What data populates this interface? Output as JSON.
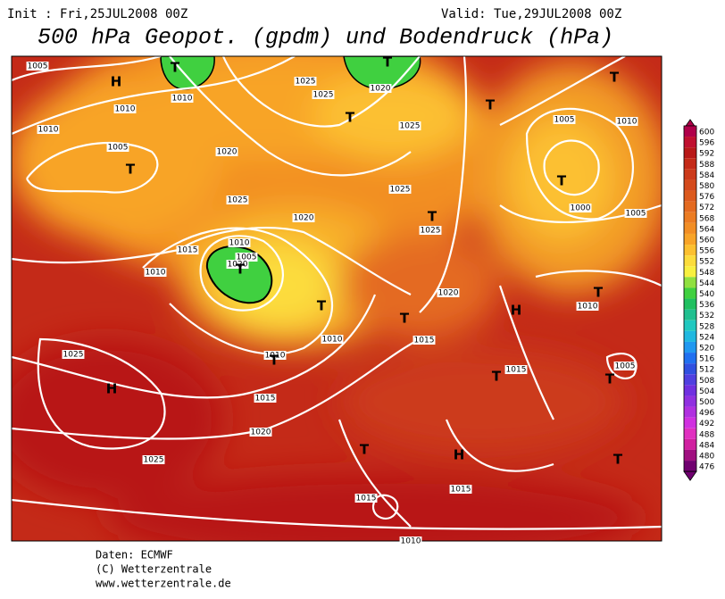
{
  "header": {
    "init": "Init : Fri,25JUL2008 00Z",
    "valid": "Valid: Tue,29JUL2008 00Z",
    "title": "500 hPa Geopot. (gpdm) und Bodendruck (hPa)"
  },
  "colorbar": {
    "labels": [
      "600",
      "596",
      "592",
      "588",
      "584",
      "580",
      "576",
      "572",
      "568",
      "564",
      "560",
      "556",
      "552",
      "548",
      "544",
      "540",
      "536",
      "532",
      "528",
      "524",
      "520",
      "516",
      "512",
      "508",
      "504",
      "500",
      "496",
      "492",
      "488",
      "484",
      "480",
      "476"
    ],
    "colors": [
      "#b0004a",
      "#c01030",
      "#b81818",
      "#c42a18",
      "#cc3a1a",
      "#d44a1c",
      "#dc5a1e",
      "#e46a20",
      "#ec7c22",
      "#f28e24",
      "#f8a428",
      "#fcc030",
      "#fcdc3c",
      "#f8f040",
      "#90e040",
      "#40d040",
      "#20c060",
      "#20c090",
      "#20c8c0",
      "#20b8e0",
      "#2098f0",
      "#2070f0",
      "#3050e0",
      "#5040e0",
      "#7030e0",
      "#9030e0",
      "#b030e0",
      "#d030e0",
      "#e030c0",
      "#d020a0",
      "#a01080",
      "#700070"
    ]
  },
  "map": {
    "pressure_labels": [
      "1005",
      "1010",
      "1010",
      "1005",
      "1010",
      "1025",
      "1025",
      "1020",
      "1025",
      "1020",
      "1025",
      "1020",
      "1015",
      "1010",
      "1005",
      "1020",
      "1010",
      "1025",
      "1025",
      "1020",
      "1015",
      "1010",
      "1010",
      "1015",
      "1020",
      "1025",
      "1025",
      "1005",
      "1010",
      "1000",
      "1005",
      "1010",
      "1015",
      "1005",
      "1015",
      "1015",
      "1010"
    ],
    "centers": [
      "H",
      "T",
      "T",
      "T",
      "T",
      "T",
      "T",
      "T",
      "T",
      "T",
      "T",
      "T",
      "H",
      "T",
      "H",
      "T",
      "H",
      "T",
      "T",
      "T",
      "T"
    ]
  },
  "footer": {
    "lines": [
      "Daten: ECMWF",
      "(C) Wetterzentrale",
      "www.wetterzentrale.de"
    ]
  }
}
